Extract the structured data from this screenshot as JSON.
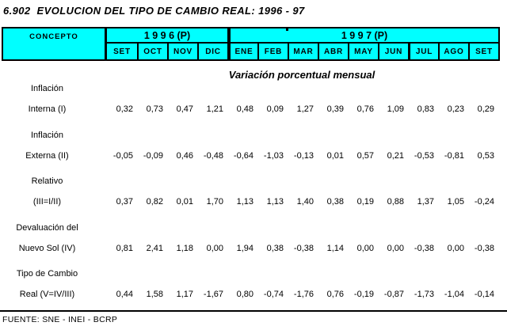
{
  "title": "6.902  EVOLUCION DEL TIPO DE CAMBIO REAL: 1996 - 97",
  "subtitle": "Variación porcentual mensual",
  "footer": "FUENTE: SNE - INEI - BCRP",
  "colors": {
    "header_bg": "#00FFFF",
    "border": "#000000",
    "text": "#000000",
    "page_bg": "#FFFFFF"
  },
  "table": {
    "concept_header": "CONCEPTO",
    "year_groups": [
      {
        "label": "1 9 9 6 (P)",
        "months": [
          "SET",
          "OCT",
          "NOV",
          "DIC"
        ]
      },
      {
        "label": "1 9 9 7 (P)",
        "months": [
          "ENE",
          "FEB",
          "MAR",
          "ABR",
          "MAY",
          "JUN",
          "JUL",
          "AGO",
          "SET"
        ]
      }
    ],
    "rows": [
      {
        "concept_line1": "Inflación",
        "concept_line2": "Interna (I)",
        "values": [
          "0,32",
          "0,73",
          "0,47",
          "1,21",
          "0,48",
          "0,09",
          "1,27",
          "0,39",
          "0,76",
          "1,09",
          "0,83",
          "0,23",
          "0,29"
        ]
      },
      {
        "concept_line1": "Inflación",
        "concept_line2": "Externa (II)",
        "values": [
          "-0,05",
          "-0,09",
          "0,46",
          "-0,48",
          "-0,64",
          "-1,03",
          "-0,13",
          "0,01",
          "0,57",
          "0,21",
          "-0,53",
          "-0,81",
          "0,53"
        ]
      },
      {
        "concept_line1": "Relativo",
        "concept_line2": "(III=I/II)",
        "values": [
          "0,37",
          "0,82",
          "0,01",
          "1,70",
          "1,13",
          "1,13",
          "1,40",
          "0,38",
          "0,19",
          "0,88",
          "1,37",
          "1,05",
          "-0,24"
        ]
      },
      {
        "concept_line1": "Devaluación del",
        "concept_line2": "Nuevo Sol (IV)",
        "values": [
          "0,81",
          "2,41",
          "1,18",
          "0,00",
          "1,94",
          "0,38",
          "-0,38",
          "1,14",
          "0,00",
          "0,00",
          "-0,38",
          "0,00",
          "-0,38"
        ]
      },
      {
        "concept_line1": "Tipo de Cambio",
        "concept_line2": "Real (V=IV/III)",
        "values": [
          "0,44",
          "1,58",
          "1,17",
          "-1,67",
          "0,80",
          "-0,74",
          "-1,76",
          "0,76",
          "-0,19",
          "-0,87",
          "-1,73",
          "-1,04",
          "-0,14"
        ]
      }
    ]
  }
}
